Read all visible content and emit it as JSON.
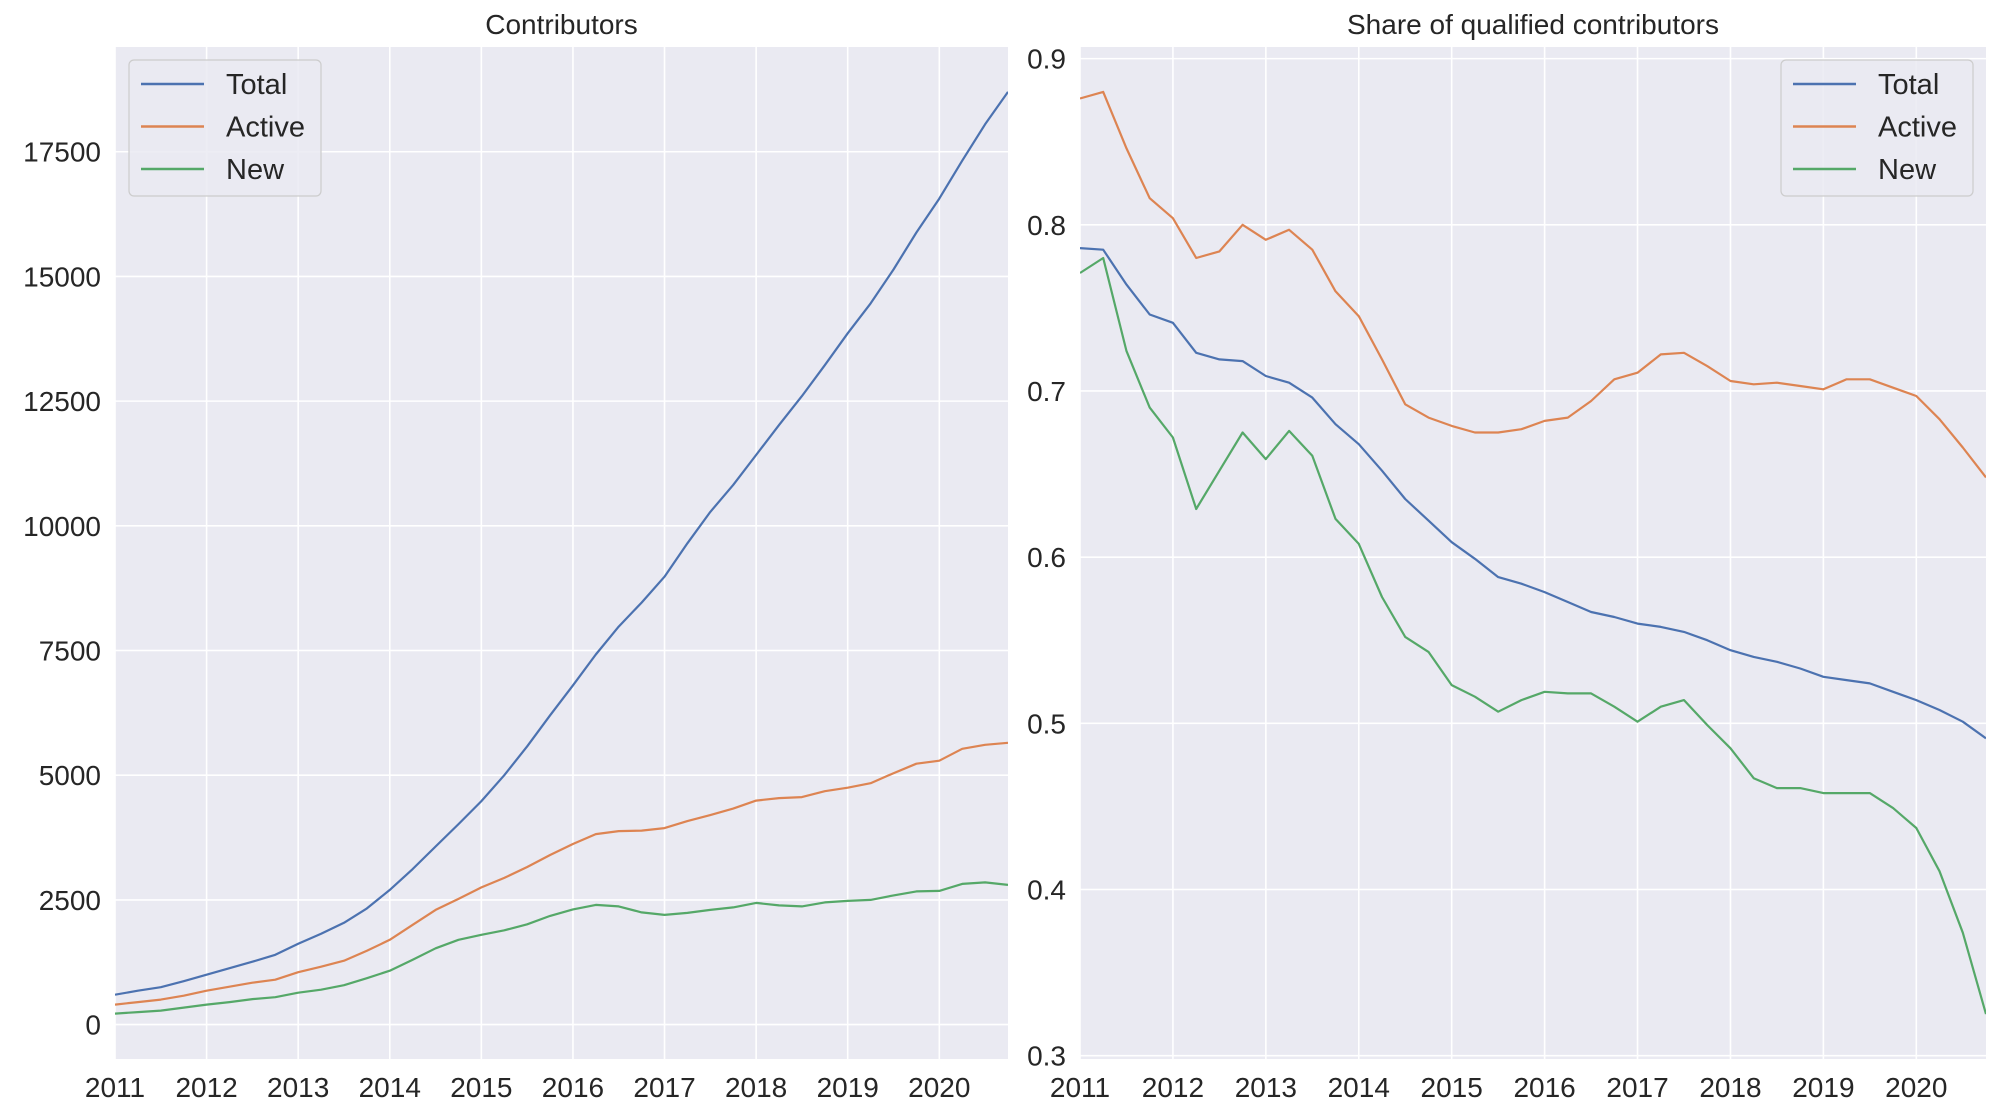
{
  "colors": {
    "background": "#eaeaf2",
    "grid": "#ffffff",
    "Total": "#4c72b0",
    "Active": "#dd8452",
    "New": "#55a868"
  },
  "chart_data": [
    {
      "type": "line",
      "title": "Contributors",
      "xlabel": "",
      "ylabel": "",
      "xlim": [
        2011,
        2020.75
      ],
      "ylim": [
        -690,
        19600
      ],
      "xticks": [
        2011,
        2012,
        2013,
        2014,
        2015,
        2016,
        2017,
        2018,
        2019,
        2020
      ],
      "xtick_labels": [
        "2011",
        "2012",
        "2013",
        "2014",
        "2015",
        "2016",
        "2017",
        "2018",
        "2019",
        "2020"
      ],
      "yticks": [
        0,
        2500,
        5000,
        7500,
        10000,
        12500,
        15000,
        17500
      ],
      "ytick_labels": [
        "0",
        "2500",
        "5000",
        "7500",
        "10000",
        "12500",
        "15000",
        "17500"
      ],
      "grid": true,
      "legend": "top-left",
      "x": [
        2011,
        2011.25,
        2011.5,
        2011.75,
        2012,
        2012.25,
        2012.5,
        2012.75,
        2013,
        2013.25,
        2013.5,
        2013.75,
        2014,
        2014.25,
        2014.5,
        2014.75,
        2015,
        2015.25,
        2015.5,
        2015.75,
        2016,
        2016.25,
        2016.5,
        2016.75,
        2017,
        2017.25,
        2017.5,
        2017.75,
        2018,
        2018.25,
        2018.5,
        2018.75,
        2019,
        2019.25,
        2019.5,
        2019.75,
        2020,
        2020.25,
        2020.5,
        2020.75
      ],
      "series": [
        {
          "name": "Total",
          "values": [
            600,
            680,
            750,
            870,
            1000,
            1130,
            1260,
            1400,
            1620,
            1820,
            2040,
            2330,
            2700,
            3120,
            3570,
            4020,
            4480,
            5000,
            5580,
            6200,
            6800,
            7420,
            7980,
            8460,
            8980,
            9650,
            10280,
            10820,
            11420,
            12020,
            12600,
            13220,
            13860,
            14460,
            15140,
            15880,
            16560,
            17320,
            18050,
            18700
          ]
        },
        {
          "name": "Active",
          "values": [
            400,
            450,
            500,
            580,
            680,
            760,
            840,
            900,
            1050,
            1160,
            1280,
            1480,
            1700,
            2000,
            2300,
            2520,
            2750,
            2940,
            3160,
            3400,
            3620,
            3820,
            3880,
            3890,
            3940,
            4080,
            4200,
            4330,
            4490,
            4540,
            4560,
            4680,
            4750,
            4840,
            5040,
            5230,
            5290,
            5530,
            5610,
            5650
          ]
        },
        {
          "name": "New",
          "values": [
            220,
            250,
            280,
            340,
            400,
            450,
            510,
            550,
            640,
            700,
            790,
            930,
            1080,
            1300,
            1530,
            1700,
            1800,
            1890,
            2010,
            2180,
            2310,
            2400,
            2370,
            2250,
            2200,
            2240,
            2300,
            2350,
            2440,
            2390,
            2370,
            2450,
            2480,
            2500,
            2590,
            2670,
            2680,
            2820,
            2850,
            2800
          ]
        }
      ]
    },
    {
      "type": "line",
      "title": "Share of qualified contributors",
      "xlabel": "",
      "ylabel": "",
      "xlim": [
        2011,
        2020.75
      ],
      "ylim": [
        0.298,
        0.907
      ],
      "xticks": [
        2011,
        2012,
        2013,
        2014,
        2015,
        2016,
        2017,
        2018,
        2019,
        2020
      ],
      "xtick_labels": [
        "2011",
        "2012",
        "2013",
        "2014",
        "2015",
        "2016",
        "2017",
        "2018",
        "2019",
        "2020"
      ],
      "yticks": [
        0.3,
        0.4,
        0.5,
        0.6,
        0.7,
        0.8,
        0.9
      ],
      "ytick_labels": [
        "0.3",
        "0.4",
        "0.5",
        "0.6",
        "0.7",
        "0.8",
        "0.9"
      ],
      "grid": true,
      "legend": "top-right",
      "x": [
        2011,
        2011.25,
        2011.5,
        2011.75,
        2012,
        2012.25,
        2012.5,
        2012.75,
        2013,
        2013.25,
        2013.5,
        2013.75,
        2014,
        2014.25,
        2014.5,
        2014.75,
        2015,
        2015.25,
        2015.5,
        2015.75,
        2016,
        2016.25,
        2016.5,
        2016.75,
        2017,
        2017.25,
        2017.5,
        2017.75,
        2018,
        2018.25,
        2018.5,
        2018.75,
        2019,
        2019.25,
        2019.5,
        2019.75,
        2020,
        2020.25,
        2020.5,
        2020.75
      ],
      "series": [
        {
          "name": "Total",
          "values": [
            0.786,
            0.785,
            0.764,
            0.746,
            0.741,
            0.723,
            0.719,
            0.718,
            0.709,
            0.705,
            0.696,
            0.68,
            0.668,
            0.652,
            0.635,
            0.622,
            0.609,
            0.599,
            0.588,
            0.584,
            0.579,
            0.573,
            0.567,
            0.564,
            0.56,
            0.558,
            0.555,
            0.55,
            0.544,
            0.54,
            0.537,
            0.533,
            0.528,
            0.526,
            0.524,
            0.519,
            0.514,
            0.508,
            0.501,
            0.491
          ]
        },
        {
          "name": "Active",
          "values": [
            0.876,
            0.88,
            0.846,
            0.816,
            0.804,
            0.78,
            0.784,
            0.8,
            0.791,
            0.797,
            0.785,
            0.76,
            0.745,
            0.719,
            0.692,
            0.684,
            0.679,
            0.675,
            0.675,
            0.677,
            0.682,
            0.684,
            0.694,
            0.707,
            0.711,
            0.722,
            0.723,
            0.715,
            0.706,
            0.704,
            0.705,
            0.703,
            0.701,
            0.707,
            0.707,
            0.702,
            0.697,
            0.683,
            0.666,
            0.648
          ]
        },
        {
          "name": "New",
          "values": [
            0.771,
            0.78,
            0.724,
            0.69,
            0.672,
            0.629,
            0.652,
            0.675,
            0.659,
            0.676,
            0.661,
            0.623,
            0.608,
            0.576,
            0.552,
            0.543,
            0.523,
            0.516,
            0.507,
            0.514,
            0.519,
            0.518,
            0.518,
            0.51,
            0.501,
            0.51,
            0.514,
            0.499,
            0.485,
            0.467,
            0.461,
            0.461,
            0.458,
            0.458,
            0.458,
            0.449,
            0.437,
            0.411,
            0.374,
            0.325
          ]
        }
      ]
    }
  ]
}
